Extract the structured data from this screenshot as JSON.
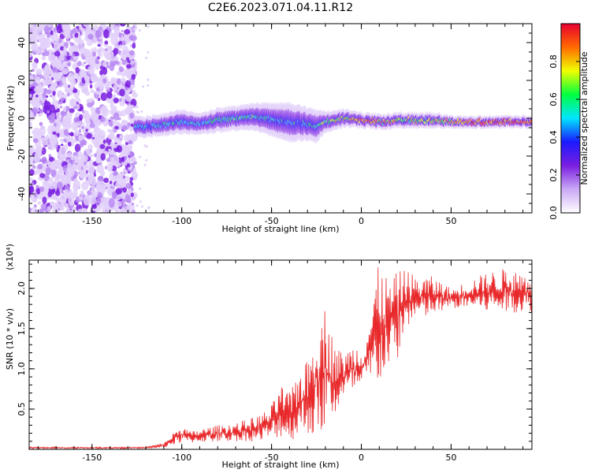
{
  "title": "C2E6.2023.071.04.11.R12",
  "chart_data": [
    {
      "type": "heatmap",
      "xlabel": "Height of straight line (km)",
      "ylabel": "Frequency (Hz)",
      "xlim": [
        -185,
        95
      ],
      "ylim": [
        -50,
        50
      ],
      "xticks": [
        -150,
        -100,
        -50,
        0,
        50
      ],
      "yticks": [
        -40,
        -20,
        0,
        20,
        40
      ],
      "colorbar": {
        "label": "Normalized spectral amplitude",
        "range": [
          0.0,
          1.0
        ],
        "ticks": [
          "0.0",
          "0.2",
          "0.4",
          "0.6",
          "0.8"
        ],
        "colors": [
          "#ffffff",
          "#c9a8f5",
          "#7a1ee0",
          "#1a1aff",
          "#00e5ff",
          "#00ff40",
          "#f0ff00",
          "#ff6a00",
          "#e80030"
        ]
      },
      "noise_region_x": [
        -185,
        -126
      ],
      "track": {
        "x": [
          -126,
          -115,
          -100,
          -90,
          -80,
          -70,
          -60,
          -50,
          -40,
          -30,
          -25,
          -20,
          -10,
          0,
          10,
          20,
          30,
          40,
          50,
          60,
          70,
          80,
          95
        ],
        "freq": [
          -5,
          -4,
          -2,
          -3,
          -1,
          0,
          1,
          -1,
          -2,
          -3,
          -4,
          -2,
          0,
          -1,
          -2,
          -1,
          -1,
          -1,
          -2,
          -2,
          -2,
          -2,
          -2
        ],
        "width": [
          6,
          6,
          7,
          6,
          7,
          7,
          8,
          10,
          12,
          10,
          10,
          6,
          5,
          4,
          4,
          4,
          4,
          4,
          3,
          3,
          3,
          3,
          3
        ],
        "strength": [
          0.45,
          0.5,
          0.5,
          0.5,
          0.55,
          0.55,
          0.55,
          0.5,
          0.5,
          0.5,
          0.55,
          0.65,
          0.7,
          0.85,
          0.8,
          0.7,
          0.7,
          0.7,
          0.75,
          0.9,
          0.92,
          0.92,
          0.92
        ]
      }
    },
    {
      "type": "line",
      "xlabel": "Height of straight line (km)",
      "ylabel": "SNR (10 * v/v)",
      "multiplier": "(x10⁴)",
      "xlim": [
        -185,
        95
      ],
      "ylim": [
        0,
        2.35
      ],
      "xticks": [
        -150,
        -100,
        -50,
        0,
        50
      ],
      "yticks": [
        0.5,
        1.0,
        1.5,
        2.0
      ],
      "series": [
        {
          "color": "#e8282a",
          "envelope_x": [
            -185,
            -130,
            -120,
            -110,
            -105,
            -100,
            -95,
            -90,
            -80,
            -70,
            -60,
            -55,
            -50,
            -45,
            -40,
            -35,
            -30,
            -25,
            -20,
            -15,
            -10,
            -5,
            0,
            5,
            10,
            15,
            20,
            25,
            30,
            40,
            50,
            60,
            70,
            80,
            90,
            95
          ],
          "envelope_lo": [
            0.01,
            0.01,
            0.01,
            0.02,
            0.05,
            0.08,
            0.08,
            0.09,
            0.09,
            0.1,
            0.1,
            0.1,
            0.12,
            0.15,
            0.1,
            0.15,
            0.2,
            0.1,
            0.25,
            0.4,
            0.6,
            0.7,
            0.7,
            0.8,
            0.8,
            1.0,
            1.1,
            1.5,
            1.6,
            1.65,
            1.75,
            1.75,
            1.7,
            1.7,
            1.7,
            1.7
          ],
          "envelope_hi": [
            0.03,
            0.03,
            0.03,
            0.08,
            0.2,
            0.3,
            0.22,
            0.25,
            0.3,
            0.33,
            0.4,
            0.45,
            0.55,
            0.8,
            0.7,
            1.0,
            1.1,
            1.6,
            1.8,
            1.3,
            1.2,
            1.3,
            1.3,
            1.7,
            2.35,
            2.1,
            2.2,
            2.25,
            2.15,
            2.15,
            2.0,
            2.1,
            2.2,
            2.25,
            2.2,
            2.2
          ]
        }
      ]
    }
  ]
}
